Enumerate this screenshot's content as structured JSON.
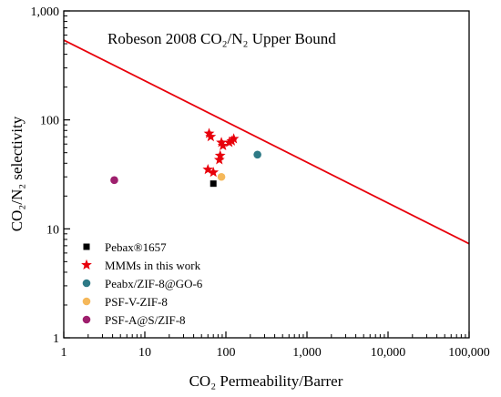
{
  "chart_data": {
    "type": "scatter",
    "title": "Robeson 2008 CO₂/N₂ Upper Bound",
    "xlabel": "CO₂ Permeability/Barrer",
    "ylabel": "CO₂/N₂ selectivity",
    "xscale": "log",
    "yscale": "log",
    "xlim": [
      1,
      100000
    ],
    "ylim": [
      1,
      1000
    ],
    "grid": false,
    "legend_position": "bottom-left",
    "x_ticks": [
      {
        "value": 1,
        "label": "1"
      },
      {
        "value": 10,
        "label": "10"
      },
      {
        "value": 100,
        "label": "100"
      },
      {
        "value": 1000,
        "label": "1,000"
      },
      {
        "value": 10000,
        "label": "10,000"
      },
      {
        "value": 100000,
        "label": "100,000"
      }
    ],
    "y_ticks": [
      {
        "value": 1,
        "label": "1"
      },
      {
        "value": 10,
        "label": "10"
      },
      {
        "value": 100,
        "label": "100"
      },
      {
        "value": 1000,
        "label": "1,000"
      }
    ],
    "upper_bound": {
      "color": "#e8000b",
      "points": [
        [
          1,
          540
        ],
        [
          100000,
          7.3
        ]
      ]
    },
    "series": [
      {
        "name": "Pebax®1657",
        "marker": "square",
        "color": "#000000",
        "points": [
          [
            70,
            26
          ]
        ]
      },
      {
        "name": "MMMs in this work",
        "marker": "star",
        "color": "#e8000b",
        "points": [
          [
            62,
            75
          ],
          [
            65,
            70
          ],
          [
            88,
            62
          ],
          [
            92,
            58
          ],
          [
            85,
            47
          ],
          [
            83,
            43
          ],
          [
            110,
            62
          ],
          [
            118,
            64
          ],
          [
            125,
            67
          ],
          [
            60,
            35
          ],
          [
            70,
            33
          ]
        ]
      },
      {
        "name": "Peabx/ZIF-8@GO-6",
        "marker": "circle",
        "color": "#2e7a86",
        "points": [
          [
            245,
            48
          ]
        ]
      },
      {
        "name": "PSF-V-ZIF-8",
        "marker": "circle",
        "color": "#f5b85a",
        "points": [
          [
            88,
            30
          ]
        ]
      },
      {
        "name": "PSF-A@S/ZIF-8",
        "marker": "circle",
        "color": "#9e1f6d",
        "points": [
          [
            4.2,
            28
          ]
        ]
      }
    ]
  }
}
